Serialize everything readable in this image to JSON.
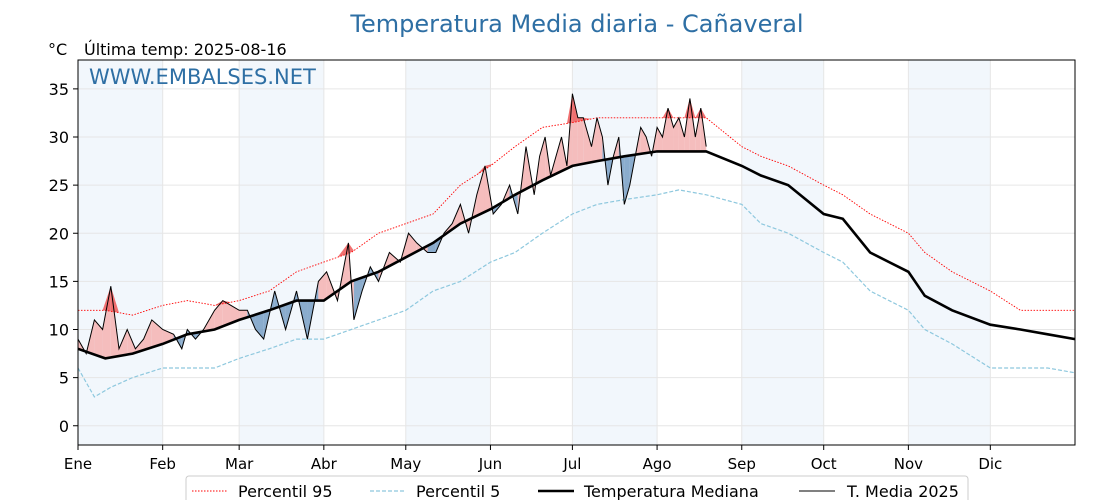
{
  "chart_data": {
    "type": "line",
    "title": "Temperatura Media diaria - Cañaveral",
    "unit_label": "°C",
    "subtitle": "Última temp: 2025-08-16",
    "watermark": "WWW.EMBALSES.NET",
    "ylim": [
      -2,
      38
    ],
    "yticks": [
      0,
      5,
      10,
      15,
      20,
      25,
      30,
      35
    ],
    "x_domain_days": [
      0,
      365
    ],
    "months": [
      "Ene",
      "Feb",
      "Mar",
      "Abr",
      "May",
      "Jun",
      "Jul",
      "Ago",
      "Sep",
      "Oct",
      "Nov",
      "Dic"
    ],
    "month_start_days": [
      0,
      31,
      59,
      90,
      120,
      151,
      181,
      212,
      243,
      273,
      304,
      334
    ],
    "grid": true,
    "legend_position": "bottom",
    "series": [
      {
        "name": "Percentil 95",
        "style": "dotted",
        "color": "#ff0000",
        "points": [
          [
            0,
            12
          ],
          [
            10,
            12
          ],
          [
            20,
            11.5
          ],
          [
            31,
            12.5
          ],
          [
            40,
            13
          ],
          [
            50,
            12.5
          ],
          [
            59,
            13
          ],
          [
            70,
            14
          ],
          [
            80,
            16
          ],
          [
            90,
            17
          ],
          [
            100,
            18
          ],
          [
            110,
            20
          ],
          [
            120,
            21
          ],
          [
            130,
            22
          ],
          [
            140,
            25
          ],
          [
            151,
            27
          ],
          [
            160,
            29
          ],
          [
            170,
            31
          ],
          [
            181,
            31.5
          ],
          [
            190,
            32
          ],
          [
            200,
            32
          ],
          [
            212,
            32
          ],
          [
            220,
            32
          ],
          [
            230,
            32
          ],
          [
            243,
            29
          ],
          [
            250,
            28
          ],
          [
            260,
            27
          ],
          [
            273,
            25
          ],
          [
            280,
            24
          ],
          [
            290,
            22
          ],
          [
            304,
            20
          ],
          [
            310,
            18
          ],
          [
            320,
            16
          ],
          [
            334,
            14
          ],
          [
            345,
            12
          ],
          [
            355,
            12
          ],
          [
            365,
            12
          ]
        ]
      },
      {
        "name": "Percentil 5",
        "style": "dashed",
        "color": "#8ec8de",
        "points": [
          [
            0,
            6
          ],
          [
            6,
            3
          ],
          [
            12,
            4
          ],
          [
            20,
            5
          ],
          [
            31,
            6
          ],
          [
            40,
            6
          ],
          [
            50,
            6
          ],
          [
            59,
            7
          ],
          [
            70,
            8
          ],
          [
            80,
            9
          ],
          [
            90,
            9
          ],
          [
            100,
            10
          ],
          [
            110,
            11
          ],
          [
            120,
            12
          ],
          [
            130,
            14
          ],
          [
            140,
            15
          ],
          [
            151,
            17
          ],
          [
            160,
            18
          ],
          [
            170,
            20
          ],
          [
            181,
            22
          ],
          [
            190,
            23
          ],
          [
            200,
            23.5
          ],
          [
            212,
            24
          ],
          [
            220,
            24.5
          ],
          [
            230,
            24
          ],
          [
            243,
            23
          ],
          [
            250,
            21
          ],
          [
            260,
            20
          ],
          [
            273,
            18
          ],
          [
            280,
            17
          ],
          [
            290,
            14
          ],
          [
            304,
            12
          ],
          [
            310,
            10
          ],
          [
            320,
            8.5
          ],
          [
            334,
            6
          ],
          [
            345,
            6
          ],
          [
            355,
            6
          ],
          [
            365,
            5.5
          ]
        ]
      },
      {
        "name": "Temperatura Mediana",
        "style": "solid-thick",
        "color": "#000000",
        "points": [
          [
            0,
            8
          ],
          [
            10,
            7
          ],
          [
            20,
            7.5
          ],
          [
            31,
            8.5
          ],
          [
            40,
            9.5
          ],
          [
            50,
            10
          ],
          [
            59,
            11
          ],
          [
            70,
            12
          ],
          [
            80,
            13
          ],
          [
            90,
            13
          ],
          [
            100,
            15
          ],
          [
            110,
            16
          ],
          [
            120,
            17.5
          ],
          [
            130,
            19
          ],
          [
            140,
            21
          ],
          [
            151,
            22.5
          ],
          [
            160,
            24
          ],
          [
            170,
            25.5
          ],
          [
            181,
            27
          ],
          [
            190,
            27.5
          ],
          [
            200,
            28
          ],
          [
            212,
            28.5
          ],
          [
            220,
            28.5
          ],
          [
            230,
            28.5
          ],
          [
            243,
            27
          ],
          [
            250,
            26
          ],
          [
            260,
            25
          ],
          [
            273,
            22
          ],
          [
            280,
            21.5
          ],
          [
            290,
            18
          ],
          [
            304,
            16
          ],
          [
            310,
            13.5
          ],
          [
            320,
            12
          ],
          [
            334,
            10.5
          ],
          [
            345,
            10
          ],
          [
            355,
            9.5
          ],
          [
            365,
            9
          ]
        ]
      },
      {
        "name": "T. Media 2025",
        "style": "solid-thin",
        "color": "#000000",
        "points": [
          [
            0,
            9
          ],
          [
            3,
            7.5
          ],
          [
            6,
            11
          ],
          [
            9,
            10
          ],
          [
            12,
            14.5
          ],
          [
            15,
            8
          ],
          [
            18,
            10
          ],
          [
            21,
            8
          ],
          [
            24,
            9
          ],
          [
            27,
            11
          ],
          [
            31,
            10
          ],
          [
            35,
            9.5
          ],
          [
            38,
            8
          ],
          [
            40,
            10
          ],
          [
            43,
            9
          ],
          [
            46,
            10
          ],
          [
            50,
            12
          ],
          [
            53,
            13
          ],
          [
            56,
            12.5
          ],
          [
            59,
            12
          ],
          [
            62,
            12
          ],
          [
            65,
            10
          ],
          [
            68,
            9
          ],
          [
            72,
            14
          ],
          [
            76,
            10
          ],
          [
            80,
            14
          ],
          [
            84,
            9
          ],
          [
            88,
            15
          ],
          [
            91,
            16
          ],
          [
            95,
            13
          ],
          [
            99,
            19
          ],
          [
            101,
            11
          ],
          [
            104,
            14
          ],
          [
            107,
            16.5
          ],
          [
            110,
            15
          ],
          [
            114,
            18
          ],
          [
            118,
            17
          ],
          [
            121,
            20
          ],
          [
            124,
            19
          ],
          [
            128,
            18
          ],
          [
            131,
            18
          ],
          [
            134,
            20
          ],
          [
            137,
            21
          ],
          [
            140,
            23
          ],
          [
            143,
            20
          ],
          [
            146,
            24
          ],
          [
            149,
            27
          ],
          [
            152,
            22
          ],
          [
            155,
            23
          ],
          [
            158,
            25
          ],
          [
            161,
            22
          ],
          [
            164,
            29
          ],
          [
            167,
            24
          ],
          [
            169,
            28
          ],
          [
            171,
            30
          ],
          [
            173,
            26
          ],
          [
            175,
            28
          ],
          [
            177,
            30
          ],
          [
            179,
            27
          ],
          [
            181,
            34.5
          ],
          [
            183,
            32
          ],
          [
            185,
            32
          ],
          [
            188,
            29
          ],
          [
            190,
            32
          ],
          [
            192,
            30
          ],
          [
            194,
            25
          ],
          [
            196,
            28
          ],
          [
            198,
            30
          ],
          [
            200,
            23
          ],
          [
            202,
            25
          ],
          [
            204,
            28
          ],
          [
            206,
            31
          ],
          [
            208,
            30
          ],
          [
            210,
            28
          ],
          [
            212,
            31
          ],
          [
            214,
            30
          ],
          [
            216,
            33
          ],
          [
            218,
            31
          ],
          [
            220,
            32
          ],
          [
            222,
            30
          ],
          [
            224,
            34
          ],
          [
            226,
            30
          ],
          [
            228,
            33
          ],
          [
            230,
            29
          ]
        ]
      }
    ]
  }
}
